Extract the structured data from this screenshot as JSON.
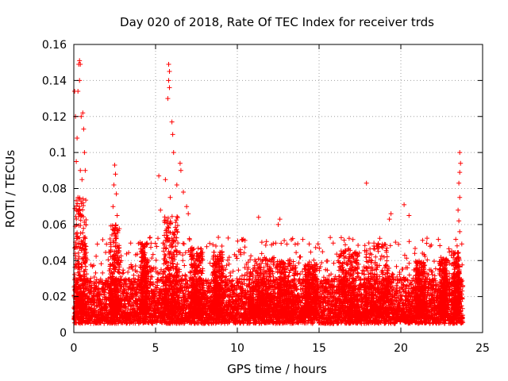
{
  "chart_data": {
    "type": "scatter",
    "title": "Day 020 of 2018, Rate Of TEC Index for receiver trds",
    "xlabel": "GPS time / hours",
    "ylabel": "ROTI / TECUs",
    "xlim": [
      0,
      25
    ],
    "ylim": [
      0,
      0.16
    ],
    "xticks": [
      0,
      5,
      10,
      15,
      20,
      25
    ],
    "xtick_labels": [
      "0",
      "5",
      "10",
      "15",
      "20",
      "25"
    ],
    "yticks": [
      0,
      0.02,
      0.04,
      0.06,
      0.08,
      0.1,
      0.12,
      0.14,
      0.16
    ],
    "ytick_labels": [
      "0",
      "0.02",
      "0.04",
      "0.06",
      "0.08",
      "0.1",
      "0.12",
      "0.14",
      "0.16"
    ],
    "grid": true,
    "marker": "plus",
    "series_color": "#ff0000",
    "data_range_x": [
      0,
      23.8
    ],
    "baseline_band": [
      0.005,
      0.03
    ],
    "outliers": [
      {
        "x": 0.05,
        "y": 0.134
      },
      {
        "x": 0.25,
        "y": 0.134
      },
      {
        "x": 0.1,
        "y": 0.12
      },
      {
        "x": 0.2,
        "y": 0.108
      },
      {
        "x": 0.3,
        "y": 0.149
      },
      {
        "x": 0.35,
        "y": 0.151
      },
      {
        "x": 0.4,
        "y": 0.149
      },
      {
        "x": 0.35,
        "y": 0.14
      },
      {
        "x": 0.45,
        "y": 0.12
      },
      {
        "x": 0.55,
        "y": 0.122
      },
      {
        "x": 0.6,
        "y": 0.113
      },
      {
        "x": 0.65,
        "y": 0.1
      },
      {
        "x": 0.15,
        "y": 0.095
      },
      {
        "x": 0.4,
        "y": 0.09
      },
      {
        "x": 0.5,
        "y": 0.085
      },
      {
        "x": 0.7,
        "y": 0.09
      },
      {
        "x": 0.25,
        "y": 0.075
      },
      {
        "x": 0.35,
        "y": 0.07
      },
      {
        "x": 2.5,
        "y": 0.093
      },
      {
        "x": 2.55,
        "y": 0.088
      },
      {
        "x": 2.45,
        "y": 0.082
      },
      {
        "x": 2.6,
        "y": 0.077
      },
      {
        "x": 2.4,
        "y": 0.07
      },
      {
        "x": 2.65,
        "y": 0.065
      },
      {
        "x": 5.2,
        "y": 0.087
      },
      {
        "x": 5.8,
        "y": 0.149
      },
      {
        "x": 5.85,
        "y": 0.145
      },
      {
        "x": 5.8,
        "y": 0.14
      },
      {
        "x": 5.85,
        "y": 0.136
      },
      {
        "x": 5.75,
        "y": 0.13
      },
      {
        "x": 6.0,
        "y": 0.117
      },
      {
        "x": 6.05,
        "y": 0.11
      },
      {
        "x": 6.1,
        "y": 0.1
      },
      {
        "x": 6.5,
        "y": 0.094
      },
      {
        "x": 6.55,
        "y": 0.09
      },
      {
        "x": 5.6,
        "y": 0.085
      },
      {
        "x": 6.3,
        "y": 0.082
      },
      {
        "x": 6.7,
        "y": 0.078
      },
      {
        "x": 5.9,
        "y": 0.075
      },
      {
        "x": 6.9,
        "y": 0.07
      },
      {
        "x": 7.0,
        "y": 0.066
      },
      {
        "x": 5.3,
        "y": 0.068
      },
      {
        "x": 11.3,
        "y": 0.064
      },
      {
        "x": 12.6,
        "y": 0.063
      },
      {
        "x": 12.5,
        "y": 0.06
      },
      {
        "x": 17.9,
        "y": 0.083
      },
      {
        "x": 19.4,
        "y": 0.066
      },
      {
        "x": 19.3,
        "y": 0.063
      },
      {
        "x": 20.2,
        "y": 0.071
      },
      {
        "x": 20.5,
        "y": 0.065
      },
      {
        "x": 23.6,
        "y": 0.1
      },
      {
        "x": 23.65,
        "y": 0.094
      },
      {
        "x": 23.6,
        "y": 0.089
      },
      {
        "x": 23.55,
        "y": 0.083
      },
      {
        "x": 23.6,
        "y": 0.075
      },
      {
        "x": 23.5,
        "y": 0.068
      },
      {
        "x": 23.55,
        "y": 0.062
      },
      {
        "x": 23.6,
        "y": 0.056
      }
    ],
    "bursts": [
      {
        "x": 0.4,
        "width": 0.7,
        "peak": 0.075
      },
      {
        "x": 2.5,
        "width": 0.6,
        "peak": 0.06
      },
      {
        "x": 4.3,
        "width": 0.4,
        "peak": 0.05
      },
      {
        "x": 5.9,
        "width": 0.9,
        "peak": 0.065
      },
      {
        "x": 7.5,
        "width": 0.8,
        "peak": 0.048
      },
      {
        "x": 8.8,
        "width": 0.6,
        "peak": 0.045
      },
      {
        "x": 11.5,
        "width": 1.5,
        "peak": 0.042
      },
      {
        "x": 13.0,
        "width": 1.2,
        "peak": 0.04
      },
      {
        "x": 14.5,
        "width": 0.8,
        "peak": 0.038
      },
      {
        "x": 16.8,
        "width": 1.2,
        "peak": 0.046
      },
      {
        "x": 18.5,
        "width": 1.5,
        "peak": 0.05
      },
      {
        "x": 21.2,
        "width": 0.6,
        "peak": 0.04
      },
      {
        "x": 22.6,
        "width": 0.5,
        "peak": 0.042
      },
      {
        "x": 23.4,
        "width": 0.4,
        "peak": 0.045
      }
    ]
  }
}
